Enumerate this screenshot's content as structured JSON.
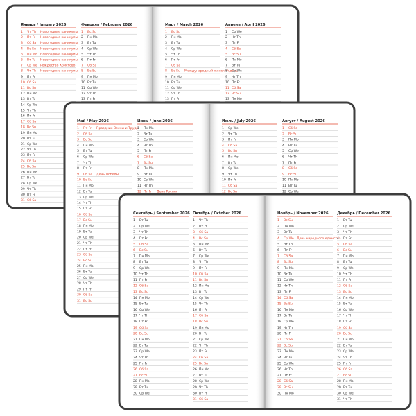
{
  "weekend": [
    "Сб Sa",
    "Вс Су",
    "Вс Su"
  ],
  "books": [
    {
      "months": [
        {
          "title": "Январь / January 2026",
          "days": [
            [
              1,
              "Чт Th",
              "Новогодние каникулы"
            ],
            [
              2,
              "Пт Fr",
              "Новогодние каникулы"
            ],
            [
              3,
              "Сб Sa",
              "Новогодние каникулы"
            ],
            [
              4,
              "Вс Su",
              "Новогодние каникулы"
            ],
            [
              5,
              "Пн Mo",
              "Новогодние каникулы"
            ],
            [
              6,
              "Вт Tu",
              "Новогодние каникулы"
            ],
            [
              7,
              "Ср We",
              "Рождество Христово"
            ],
            [
              8,
              "Чт Th",
              "Новогодние каникулы"
            ],
            [
              9,
              "Пт Fr"
            ],
            [
              10,
              "Сб Sa"
            ],
            [
              11,
              "Вс Su"
            ],
            [
              12,
              "Пн Mo"
            ],
            [
              13,
              "Вт Tu"
            ],
            [
              14,
              "Ср We"
            ],
            [
              15,
              "Чт Th"
            ],
            [
              16,
              "Пт Fr"
            ],
            [
              17,
              "Сб Sa"
            ],
            [
              18,
              "Вс Su"
            ],
            [
              19,
              "Пн Mo"
            ],
            [
              20,
              "Вт Tu"
            ],
            [
              21,
              "Ср We"
            ],
            [
              22,
              "Чт Th"
            ],
            [
              23,
              "Пт Fr"
            ],
            [
              24,
              "Сб Sa"
            ],
            [
              25,
              "Вс Su"
            ],
            [
              26,
              "Пн Mo"
            ],
            [
              27,
              "Вт Tu"
            ],
            [
              28,
              "Ср We"
            ],
            [
              29,
              "Чт Th"
            ],
            [
              30,
              "Пт Fr"
            ],
            [
              31,
              "Сб Sa"
            ]
          ]
        },
        {
          "title": "Февраль / February 2026",
          "days": [
            [
              1,
              "Вс Su"
            ],
            [
              2,
              "Пн Mo"
            ],
            [
              3,
              "Вт Tu"
            ],
            [
              4,
              "Ср We"
            ],
            [
              5,
              "Чт Th"
            ],
            [
              6,
              "Пт Fr"
            ],
            [
              7,
              "Сб Sa"
            ],
            [
              8,
              "Вс Su"
            ],
            [
              9,
              "Пн Mo"
            ],
            [
              10,
              "Вт Tu"
            ],
            [
              11,
              "Ср We"
            ],
            [
              12,
              "Чт Th"
            ],
            [
              13,
              "Пт Fr"
            ]
          ]
        },
        {
          "title": "Март / March 2026",
          "days": [
            [
              1,
              "Вс Su"
            ],
            [
              2,
              "Пн Mo"
            ],
            [
              3,
              "Вт Tu"
            ],
            [
              4,
              "Ср We"
            ],
            [
              5,
              "Чт Th"
            ],
            [
              6,
              "Пт Fr"
            ],
            [
              7,
              "Сб Sa"
            ],
            [
              8,
              "Вс Su",
              "Международный женский день"
            ],
            [
              9,
              "Пн Mo"
            ],
            [
              10,
              "Вт Tu"
            ],
            [
              11,
              "Ср We"
            ],
            [
              12,
              "Чт Th"
            ],
            [
              13,
              "Пт Fr"
            ]
          ]
        },
        {
          "title": "Апрель / April 2026",
          "days": [
            [
              1,
              "Ср We"
            ],
            [
              2,
              "Чт Th"
            ],
            [
              3,
              "Пт Fr"
            ],
            [
              4,
              "Сб Sa"
            ],
            [
              5,
              "Вс Su"
            ],
            [
              6,
              "Пн Mo"
            ],
            [
              7,
              "Вт Tu"
            ],
            [
              8,
              "Ср We"
            ],
            [
              9,
              "Чт Th"
            ],
            [
              10,
              "Пт Fr"
            ],
            [
              11,
              "Сб Sa"
            ],
            [
              12,
              "Вс Su"
            ],
            [
              13,
              "Пн Mo"
            ]
          ]
        }
      ]
    },
    {
      "months": [
        {
          "title": "Май / May 2026",
          "days": [
            [
              1,
              "Пт Fr",
              "Праздник Весны и Труда"
            ],
            [
              2,
              "Сб Sa"
            ],
            [
              3,
              "Вс Su"
            ],
            [
              4,
              "Пн Mo"
            ],
            [
              5,
              "Вт Tu"
            ],
            [
              6,
              "Ср We"
            ],
            [
              7,
              "Чт Th"
            ],
            [
              8,
              "Пт Fr"
            ],
            [
              9,
              "Сб Sa",
              "День Победы"
            ],
            [
              10,
              "Вс Su"
            ],
            [
              11,
              "Пн Mo"
            ],
            [
              12,
              "Вт Tu"
            ],
            [
              13,
              "Ср We"
            ],
            [
              14,
              "Чт Th"
            ],
            [
              15,
              "Пт Fr"
            ],
            [
              16,
              "Сб Sa"
            ],
            [
              17,
              "Вс Su"
            ],
            [
              18,
              "Пн Mo"
            ],
            [
              19,
              "Вт Tu"
            ],
            [
              20,
              "Ср We"
            ],
            [
              21,
              "Чт Th"
            ],
            [
              22,
              "Пт Fr"
            ],
            [
              23,
              "Сб Sa"
            ],
            [
              24,
              "Вс Su"
            ],
            [
              25,
              "Пн Mo"
            ],
            [
              26,
              "Вт Tu"
            ],
            [
              27,
              "Ср We"
            ],
            [
              28,
              "Чт Th"
            ],
            [
              29,
              "Пт Fr"
            ],
            [
              30,
              "Сб Sa"
            ],
            [
              31,
              "Вс Su"
            ]
          ]
        },
        {
          "title": "Июнь / June 2026",
          "days": [
            [
              1,
              "Пн Mo"
            ],
            [
              2,
              "Вт Tu"
            ],
            [
              3,
              "Ср We"
            ],
            [
              4,
              "Чт Th"
            ],
            [
              5,
              "Пт Fr"
            ],
            [
              6,
              "Сб Sa"
            ],
            [
              7,
              "Вс Su"
            ],
            [
              8,
              "Пн Mo"
            ],
            [
              9,
              "Вт Tu"
            ],
            [
              10,
              "Ср We"
            ],
            [
              11,
              "Чт Th"
            ],
            [
              12,
              "Пт Fr",
              "День России"
            ]
          ]
        },
        {
          "title": "Июль / July 2026",
          "days": [
            [
              1,
              "Ср We"
            ],
            [
              2,
              "Чт Th"
            ],
            [
              3,
              "Пт Fr"
            ],
            [
              4,
              "Сб Sa"
            ],
            [
              5,
              "Вс Su"
            ],
            [
              6,
              "Пн Mo"
            ],
            [
              7,
              "Вт Tu"
            ],
            [
              8,
              "Ср We"
            ],
            [
              9,
              "Чт Th"
            ],
            [
              10,
              "Пт Fr"
            ],
            [
              11,
              "Сб Sa"
            ],
            [
              12,
              "Вс Su"
            ]
          ]
        },
        {
          "title": "Август / August 2026",
          "days": [
            [
              1,
              "Сб Sa"
            ],
            [
              2,
              "Вс Su"
            ],
            [
              3,
              "Пн Mo"
            ],
            [
              4,
              "Вт Tu"
            ],
            [
              5,
              "Ср We"
            ],
            [
              6,
              "Чт Th"
            ],
            [
              7,
              "Пт Fr"
            ],
            [
              8,
              "Сб Sa"
            ],
            [
              9,
              "Вс Su"
            ],
            [
              10,
              "Пн Mo"
            ],
            [
              11,
              "Вт Tu"
            ],
            [
              12,
              "Ср We"
            ]
          ]
        }
      ]
    },
    {
      "months": [
        {
          "title": "Сентябрь / September 2026",
          "days": [
            [
              1,
              "Вт Tu"
            ],
            [
              2,
              "Ср We"
            ],
            [
              3,
              "Чт Th"
            ],
            [
              4,
              "Пт Fr"
            ],
            [
              5,
              "Сб Sa"
            ],
            [
              6,
              "Вс Su"
            ],
            [
              7,
              "Пн Mo"
            ],
            [
              8,
              "Вт Tu"
            ],
            [
              9,
              "Ср We"
            ],
            [
              10,
              "Чт Th"
            ],
            [
              11,
              "Пт Fr"
            ],
            [
              12,
              "Сб Sa"
            ],
            [
              13,
              "Вс Su"
            ],
            [
              14,
              "Пн Mo"
            ],
            [
              15,
              "Вт Tu"
            ],
            [
              16,
              "Ср We"
            ],
            [
              17,
              "Чт Th"
            ],
            [
              18,
              "Пт Fr"
            ],
            [
              19,
              "Сб Sa"
            ],
            [
              20,
              "Вс Su"
            ],
            [
              21,
              "Пн Mo"
            ],
            [
              22,
              "Вт Tu"
            ],
            [
              23,
              "Ср We"
            ],
            [
              24,
              "Чт Th"
            ],
            [
              25,
              "Пт Fr"
            ],
            [
              26,
              "Сб Sa"
            ],
            [
              27,
              "Вс Su"
            ],
            [
              28,
              "Пн Mo"
            ],
            [
              29,
              "Вт Tu"
            ],
            [
              30,
              "Ср We"
            ]
          ]
        },
        {
          "title": "Октябрь / October 2026",
          "days": [
            [
              1,
              "Чт Th"
            ],
            [
              2,
              "Пт Fr"
            ],
            [
              3,
              "Сб Sa"
            ],
            [
              4,
              "Вс Su"
            ],
            [
              5,
              "Пн Mo"
            ],
            [
              6,
              "Вт Tu"
            ],
            [
              7,
              "Ср We"
            ],
            [
              8,
              "Чт Th"
            ],
            [
              9,
              "Пт Fr"
            ],
            [
              10,
              "Сб Sa"
            ],
            [
              11,
              "Вс Su"
            ],
            [
              12,
              "Пн Mo"
            ],
            [
              13,
              "Вт Tu"
            ],
            [
              14,
              "Ср We"
            ],
            [
              15,
              "Чт Th"
            ],
            [
              16,
              "Пт Fr"
            ],
            [
              17,
              "Сб Sa"
            ],
            [
              18,
              "Вс Su"
            ],
            [
              19,
              "Пн Mo"
            ],
            [
              20,
              "Вт Tu"
            ],
            [
              21,
              "Ср We"
            ],
            [
              22,
              "Чт Th"
            ],
            [
              23,
              "Пт Fr"
            ],
            [
              24,
              "Сб Sa"
            ],
            [
              25,
              "Вс Su"
            ],
            [
              26,
              "Пн Mo"
            ],
            [
              27,
              "Вт Tu"
            ],
            [
              28,
              "Ср We"
            ],
            [
              29,
              "Чт Th"
            ],
            [
              30,
              "Пт Fr"
            ],
            [
              31,
              "Сб Sa"
            ]
          ]
        },
        {
          "title": "Ноябрь / November 2026",
          "days": [
            [
              1,
              "Вс Su"
            ],
            [
              2,
              "Пн Mo"
            ],
            [
              3,
              "Вт Tu"
            ],
            [
              4,
              "Ср We",
              "День народного единства"
            ],
            [
              5,
              "Чт Th"
            ],
            [
              6,
              "Пт Fr"
            ],
            [
              7,
              "Сб Sa"
            ],
            [
              8,
              "Вс Su"
            ],
            [
              9,
              "Пн Mo"
            ],
            [
              10,
              "Вт Tu"
            ],
            [
              11,
              "Ср We"
            ],
            [
              12,
              "Чт Th"
            ],
            [
              13,
              "Пт Fr"
            ],
            [
              14,
              "Сб Sa"
            ],
            [
              15,
              "Вс Su"
            ],
            [
              16,
              "Пн Mo"
            ],
            [
              17,
              "Вт Tu"
            ],
            [
              18,
              "Ср We"
            ],
            [
              19,
              "Чт Th"
            ],
            [
              20,
              "Пт Fr"
            ],
            [
              21,
              "Сб Sa"
            ],
            [
              22,
              "Вс Su"
            ],
            [
              23,
              "Пн Mo"
            ],
            [
              24,
              "Вт Tu"
            ],
            [
              25,
              "Ср We"
            ],
            [
              26,
              "Чт Th"
            ],
            [
              27,
              "Пт Fr"
            ],
            [
              28,
              "Сб Sa"
            ],
            [
              29,
              "Вс Su"
            ],
            [
              30,
              "Пн Mo"
            ]
          ]
        },
        {
          "title": "Декабрь / December 2026",
          "days": [
            [
              1,
              "Вт Tu"
            ],
            [
              2,
              "Ср We"
            ],
            [
              3,
              "Чт Th"
            ],
            [
              4,
              "Пт Fr"
            ],
            [
              5,
              "Сб Sa"
            ],
            [
              6,
              "Вс Su"
            ],
            [
              7,
              "Пн Mo"
            ],
            [
              8,
              "Вт Tu"
            ],
            [
              9,
              "Ср We"
            ],
            [
              10,
              "Чт Th"
            ],
            [
              11,
              "Пт Fr"
            ],
            [
              12,
              "Сб Sa"
            ],
            [
              13,
              "Вс Su"
            ],
            [
              14,
              "Пн Mo"
            ],
            [
              15,
              "Вт Tu"
            ],
            [
              16,
              "Ср We"
            ],
            [
              17,
              "Чт Th"
            ],
            [
              18,
              "Пт Fr"
            ],
            [
              19,
              "Сб Sa"
            ],
            [
              20,
              "Вс Su"
            ],
            [
              21,
              "Пн Mo"
            ],
            [
              22,
              "Вт Tu"
            ],
            [
              23,
              "Ср We"
            ],
            [
              24,
              "Чт Th"
            ],
            [
              25,
              "Пт Fr"
            ],
            [
              26,
              "Сб Sa"
            ],
            [
              27,
              "Вс Su"
            ],
            [
              28,
              "Пн Mo"
            ],
            [
              29,
              "Вт Tu"
            ],
            [
              30,
              "Ср We"
            ],
            [
              31,
              "Чт Th"
            ]
          ]
        }
      ]
    }
  ]
}
